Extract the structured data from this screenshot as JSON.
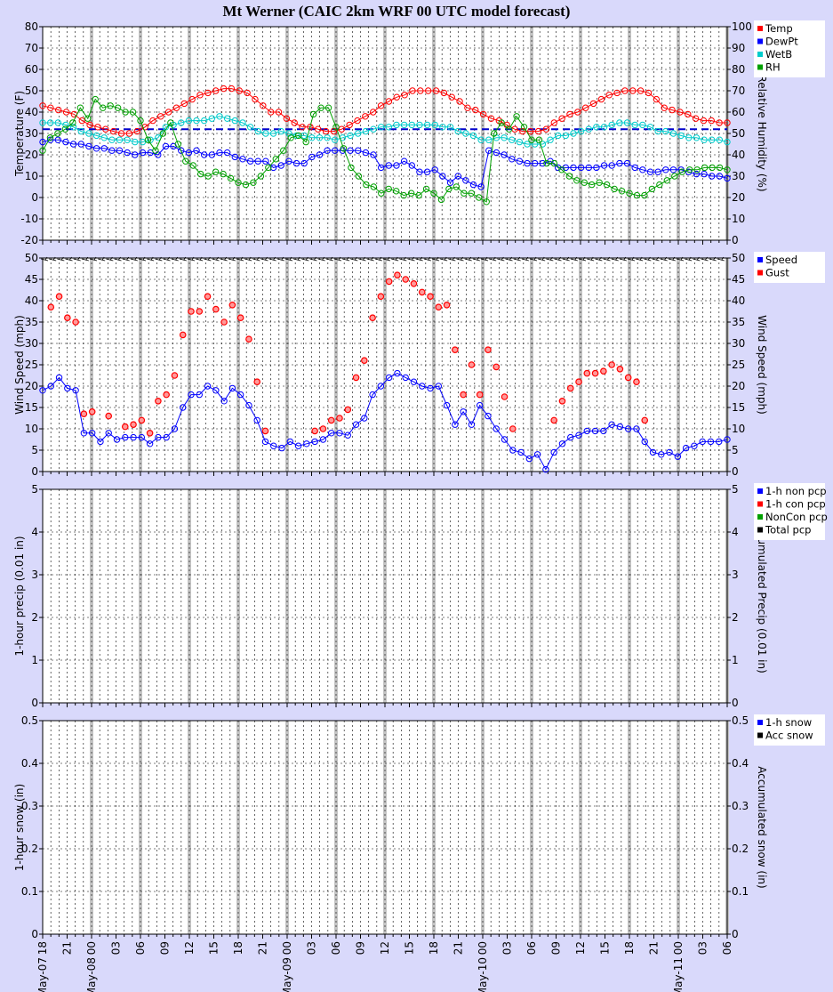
{
  "title": "Mt Werner (CAIC 2km WRF 00 UTC model forecast)",
  "x_axis": {
    "hour_labels": [
      "18",
      "21",
      "00",
      "03",
      "06",
      "09",
      "12",
      "15",
      "18",
      "21",
      "00",
      "03",
      "06",
      "09",
      "12",
      "15",
      "18",
      "21",
      "00",
      "03",
      "06",
      "09",
      "12",
      "15",
      "18",
      "21",
      "00",
      "03",
      "06"
    ],
    "date_labels": [
      {
        "index": 0,
        "text": "May-07"
      },
      {
        "index": 2,
        "text": "May-08"
      },
      {
        "index": 10,
        "text": "May-09"
      },
      {
        "index": 18,
        "text": "May-10"
      },
      {
        "index": 26,
        "text": "May-11"
      }
    ],
    "hours_total": 84
  },
  "colors": {
    "temp": "#ff0000",
    "dewpt": "#0000ff",
    "wetb": "#00cccc",
    "rh": "#00a000",
    "speed": "#0000ff",
    "gust": "#ff0000",
    "total": "#000000",
    "freezing_line": "#0000cc"
  },
  "chart_data": [
    {
      "id": "temperature",
      "type": "line",
      "ylabel": "Temperature (F)",
      "y2label": "Relative Humidity (%)",
      "ylim": [
        -20,
        80
      ],
      "y2lim": [
        0,
        100
      ],
      "reference_line": 32,
      "legend": [
        "Temp",
        "DewPt",
        "WetB",
        "RH"
      ],
      "series": [
        {
          "name": "Temp",
          "axis": "left",
          "values": [
            43,
            42,
            41,
            40,
            39,
            36,
            34,
            33,
            32,
            31,
            30,
            30,
            31,
            33,
            36,
            38,
            40,
            42,
            44,
            46,
            48,
            49,
            50,
            51,
            51,
            50,
            49,
            46,
            43,
            40,
            40,
            37,
            35,
            33,
            33,
            32,
            31,
            31,
            32,
            34,
            36,
            38,
            40,
            43,
            45,
            47,
            48,
            50,
            50,
            50,
            50,
            49,
            47,
            45,
            42,
            41,
            39,
            37,
            36,
            34,
            32,
            31,
            31,
            31,
            32,
            35,
            37,
            39,
            40,
            42,
            44,
            46,
            48,
            49,
            50,
            50,
            50,
            49,
            46,
            42,
            41,
            40,
            39,
            37,
            36,
            36,
            35,
            35
          ]
        },
        {
          "name": "DewPt",
          "axis": "left",
          "values": [
            26,
            27,
            27,
            26,
            25,
            25,
            24,
            23,
            23,
            22,
            22,
            21,
            20,
            21,
            21,
            20,
            24,
            24,
            22,
            21,
            22,
            20,
            20,
            21,
            21,
            19,
            18,
            17,
            17,
            17,
            14,
            15,
            17,
            16,
            16,
            19,
            20,
            22,
            22,
            22,
            22,
            22,
            21,
            20,
            14,
            15,
            15,
            17,
            15,
            12,
            12,
            13,
            10,
            7,
            10,
            8,
            6,
            5,
            22,
            21,
            20,
            18,
            17,
            16,
            16,
            16,
            17,
            14,
            14,
            14,
            14,
            14,
            14,
            15,
            15,
            16,
            16,
            14,
            13,
            12,
            12,
            13,
            13,
            13,
            12,
            11,
            11,
            10,
            10,
            9
          ]
        },
        {
          "name": "WetB",
          "axis": "left",
          "values": [
            35,
            35,
            35,
            34,
            33,
            31,
            30,
            29,
            28,
            27,
            27,
            27,
            26,
            26,
            27,
            28,
            33,
            34,
            35,
            36,
            36,
            36,
            37,
            38,
            37,
            36,
            35,
            33,
            31,
            30,
            30,
            31,
            30,
            29,
            29,
            28,
            28,
            28,
            27,
            28,
            29,
            30,
            31,
            32,
            33,
            33,
            34,
            34,
            34,
            34,
            34,
            34,
            33,
            33,
            31,
            30,
            29,
            27,
            27,
            28,
            28,
            27,
            26,
            25,
            25,
            25,
            27,
            29,
            29,
            30,
            31,
            32,
            33,
            33,
            34,
            35,
            35,
            34,
            34,
            33,
            31,
            31,
            30,
            29,
            28,
            28,
            27,
            27,
            27,
            26
          ]
        },
        {
          "name": "RH",
          "axis": "right",
          "values": [
            42,
            48,
            50,
            52,
            55,
            62,
            57,
            66,
            62,
            63,
            62,
            60,
            60,
            56,
            47,
            42,
            50,
            55,
            45,
            37,
            35,
            31,
            30,
            32,
            31,
            29,
            27,
            26,
            27,
            30,
            34,
            38,
            42,
            48,
            49,
            46,
            59,
            62,
            62,
            53,
            43,
            34,
            30,
            26,
            25,
            22,
            24,
            23,
            21,
            22,
            21,
            24,
            22,
            19,
            24,
            25,
            22,
            22,
            20,
            18,
            50,
            55,
            52,
            58,
            53,
            47,
            47,
            36,
            36,
            33,
            30,
            28,
            27,
            26,
            27,
            26,
            24,
            23,
            22,
            21,
            21,
            24,
            26,
            28,
            30,
            32,
            33,
            33,
            34,
            34,
            34,
            33
          ]
        }
      ]
    },
    {
      "id": "wind",
      "type": "scatter",
      "ylabel": "Wind Speed (mph)",
      "y2label": "Wind Speed (mph)",
      "ylim": [
        0,
        50
      ],
      "legend": [
        "Speed",
        "Gust"
      ],
      "series": [
        {
          "name": "Speed",
          "values": [
            19,
            20,
            22,
            19.5,
            19,
            9,
            9,
            7,
            9,
            7.5,
            8,
            8,
            8,
            6.5,
            8,
            8,
            10,
            15,
            18,
            18,
            20,
            19,
            16.5,
            19.5,
            18,
            15.5,
            12,
            7,
            6,
            5.5,
            7,
            6,
            6.5,
            7,
            7.5,
            9,
            9,
            8.5,
            11,
            12.5,
            18,
            20,
            22,
            23,
            22,
            21,
            20,
            19.5,
            20,
            15.5,
            11,
            14,
            11,
            15.5,
            13,
            10,
            7.5,
            5,
            4.5,
            3,
            4,
            0.5,
            4.5,
            6.5,
            8,
            8.5,
            9.5,
            9.5,
            9.5,
            11,
            10.5,
            10,
            10,
            7,
            4.5,
            4,
            4.5,
            3.5,
            5.5,
            6,
            7,
            7,
            7,
            7.5
          ]
        },
        {
          "name": "Gust",
          "values": [
            null,
            38.5,
            41,
            36,
            35,
            13.5,
            14,
            null,
            13,
            null,
            10.5,
            11,
            12,
            9,
            16.5,
            18,
            22.5,
            32,
            37.5,
            37.5,
            41,
            38,
            35,
            39,
            36,
            31,
            21,
            9.5,
            null,
            null,
            null,
            null,
            null,
            9.5,
            10,
            12,
            12.5,
            14.5,
            22,
            26,
            36,
            41,
            44.5,
            46,
            45,
            44,
            42,
            41,
            38.5,
            39,
            28.5,
            18,
            25,
            18,
            28.5,
            24.5,
            17.5,
            10,
            null,
            null,
            null,
            null,
            12,
            16.5,
            19.5,
            21,
            23,
            23,
            23.5,
            25,
            24,
            22,
            21,
            12,
            null,
            null,
            null,
            null,
            null,
            null,
            null,
            null,
            null,
            null
          ]
        }
      ]
    },
    {
      "id": "precip",
      "type": "line",
      "ylabel": "1-hour precip (0.01 in)",
      "y2label": "Accumulated Precip (0.01 in)",
      "ylim": [
        0,
        5
      ],
      "legend": [
        "1-h non pcp",
        "1-h con pcp",
        "NonCon pcp",
        "Total pcp"
      ],
      "series": []
    },
    {
      "id": "snow",
      "type": "line",
      "ylabel": "1-hour snow (in)",
      "y2label": "Accumulated snow (in)",
      "ylim": [
        0,
        0.5
      ],
      "legend": [
        "1-h snow",
        "Acc snow"
      ],
      "series": []
    }
  ]
}
